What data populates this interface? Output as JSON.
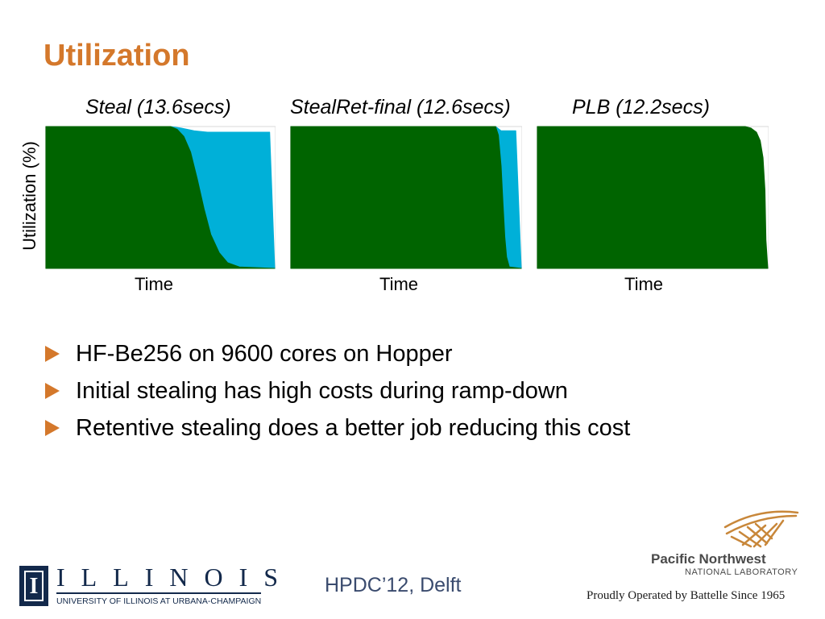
{
  "slide": {
    "title": "Utilization",
    "ylabel": "Utilization (%)",
    "footer": "HPDC’12, Delft"
  },
  "chart_data": [
    {
      "type": "area",
      "title": "Steal (13.6secs)",
      "xlabel": "Time",
      "ylabel": "Utilization (%)",
      "ylim": [
        0,
        100
      ],
      "xlim": [
        0,
        13.6
      ],
      "grid": false,
      "series": [
        {
          "color": "#006400",
          "x": [
            0,
            7.4,
            7.8,
            8.2,
            8.6,
            9.0,
            9.4,
            9.8,
            10.3,
            10.8,
            11.5,
            13.6
          ],
          "y": [
            100,
            100,
            98,
            93,
            82,
            63,
            42,
            24,
            11,
            4,
            1,
            0
          ]
        },
        {
          "color": "#00b0d8",
          "x": [
            0,
            7.4,
            8.0,
            8.8,
            9.6,
            13.3,
            13.6
          ],
          "y": [
            100,
            100,
            99,
            97,
            96,
            96,
            0
          ]
        }
      ]
    },
    {
      "type": "area",
      "title": "StealRet-final (12.6secs)",
      "xlabel": "Time",
      "ylabel": "Utilization (%)",
      "ylim": [
        0,
        100
      ],
      "xlim": [
        0,
        12.6
      ],
      "grid": false,
      "series": [
        {
          "color": "#006400",
          "x": [
            0,
            11.2,
            11.35,
            11.5,
            11.6,
            11.7,
            11.8,
            11.95,
            12.6
          ],
          "y": [
            100,
            100,
            94,
            72,
            46,
            22,
            8,
            1,
            0
          ]
        },
        {
          "color": "#00b0d8",
          "x": [
            0,
            11.2,
            11.5,
            12.3,
            12.6
          ],
          "y": [
            100,
            100,
            97,
            97,
            0
          ]
        }
      ]
    },
    {
      "type": "area",
      "title": "PLB (12.2secs)",
      "xlabel": "Time",
      "ylabel": "Utilization (%)",
      "ylim": [
        0,
        100
      ],
      "xlim": [
        0,
        12.2
      ],
      "grid": false,
      "series": [
        {
          "color": "#006400",
          "x": [
            0,
            11.0,
            11.3,
            11.6,
            11.8,
            11.95,
            12.05,
            12.1,
            12.2
          ],
          "y": [
            100,
            100,
            99,
            96,
            90,
            78,
            55,
            20,
            0
          ]
        }
      ]
    }
  ],
  "bullets": [
    "HF-Be256 on 9600 cores on Hopper",
    "Initial stealing has high costs during ramp-down",
    "Retentive stealing does a better job reducing this cost"
  ],
  "logos": {
    "illinois_seal": "I",
    "illinois_word": "ILLINOIS",
    "illinois_sub": "UNIVERSITY OF ILLINOIS AT URBANA-CHAMPAIGN",
    "pnnl_name": "Pacific Northwest",
    "pnnl_lab": "NATIONAL LABORATORY",
    "pnnl_battelle": "Proudly Operated by Battelle Since 1965"
  }
}
